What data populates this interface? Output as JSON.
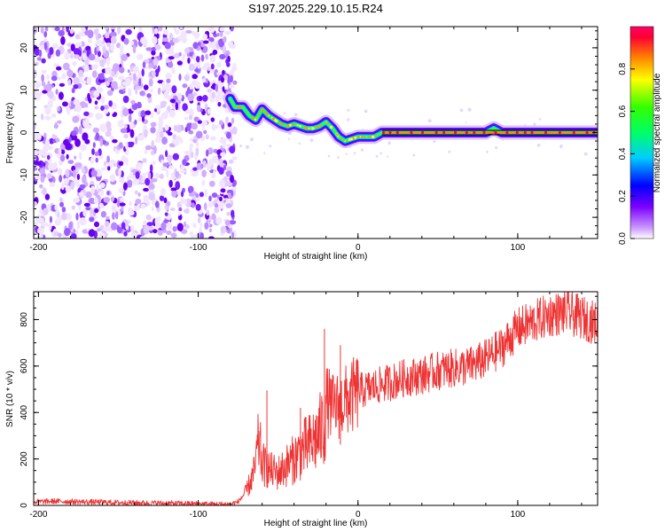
{
  "title": "S197.2025.229.10.15.R24",
  "chart_data": [
    {
      "type": "heatmap",
      "xlabel": "Height of straight line (km)",
      "ylabel": "Frequency (Hz)",
      "xlim": [
        -203,
        150
      ],
      "ylim": [
        -25,
        25
      ],
      "xticks": [
        -200,
        -100,
        0,
        100
      ],
      "yticks": [
        -20,
        -10,
        0,
        10,
        20
      ],
      "noise_region_x": [
        -203,
        -77
      ],
      "ridge": {
        "description": "dominant frequency track",
        "x": [
          -80,
          -77,
          -72,
          -68,
          -64,
          -60,
          -56,
          -52,
          -48,
          -44,
          -40,
          -36,
          -32,
          -28,
          -24,
          -20,
          -16,
          -12,
          -8,
          -4,
          0,
          5,
          10,
          15,
          20,
          30,
          40,
          50,
          60,
          70,
          80,
          85,
          90,
          100,
          110,
          120,
          130,
          140,
          150
        ],
        "y": [
          8,
          6,
          6,
          4,
          3,
          5.5,
          4,
          3,
          2,
          1.5,
          2,
          1.5,
          1,
          1,
          1.5,
          2.5,
          1,
          -1,
          -2,
          -1.5,
          -1,
          -1,
          -1,
          0,
          0,
          0,
          0,
          0,
          0,
          0,
          0,
          1,
          0,
          0,
          0,
          0,
          0,
          0,
          0
        ]
      },
      "colorbar": {
        "label": "Normalized spectral amplitude",
        "range": [
          0,
          1
        ],
        "ticks": [
          "0.0",
          "0.2",
          "0.4",
          "0.6",
          "0.8"
        ]
      }
    },
    {
      "type": "line",
      "xlabel": "Height of straight line (km)",
      "ylabel": "SNR (10 * v/v)",
      "xlim": [
        -203,
        150
      ],
      "ylim": [
        0,
        920
      ],
      "xticks": [
        -200,
        -100,
        0,
        100
      ],
      "yticks": [
        0,
        200,
        400,
        600,
        800
      ],
      "series": [
        {
          "name": "SNR",
          "color": "#ee3333",
          "x": [
            -203,
            -190,
            -170,
            -150,
            -130,
            -110,
            -90,
            -80,
            -75,
            -70,
            -65,
            -62,
            -60,
            -57,
            -55,
            -50,
            -45,
            -40,
            -35,
            -30,
            -25,
            -21,
            -20,
            -15,
            -10,
            -5,
            0,
            10,
            20,
            30,
            40,
            50,
            60,
            70,
            80,
            90,
            100,
            110,
            120,
            130,
            140,
            150
          ],
          "y": [
            15,
            18,
            15,
            12,
            10,
            8,
            5,
            5,
            15,
            60,
            140,
            280,
            180,
            160,
            150,
            140,
            170,
            200,
            240,
            260,
            300,
            350,
            450,
            420,
            440,
            460,
            490,
            510,
            530,
            550,
            560,
            580,
            590,
            600,
            630,
            680,
            760,
            790,
            820,
            830,
            810,
            780
          ]
        }
      ],
      "spikes": [
        {
          "x": -57,
          "y": 495
        },
        {
          "x": -36,
          "y": 420
        },
        {
          "x": -21,
          "y": 760
        },
        {
          "x": -11,
          "y": 690
        }
      ]
    }
  ]
}
